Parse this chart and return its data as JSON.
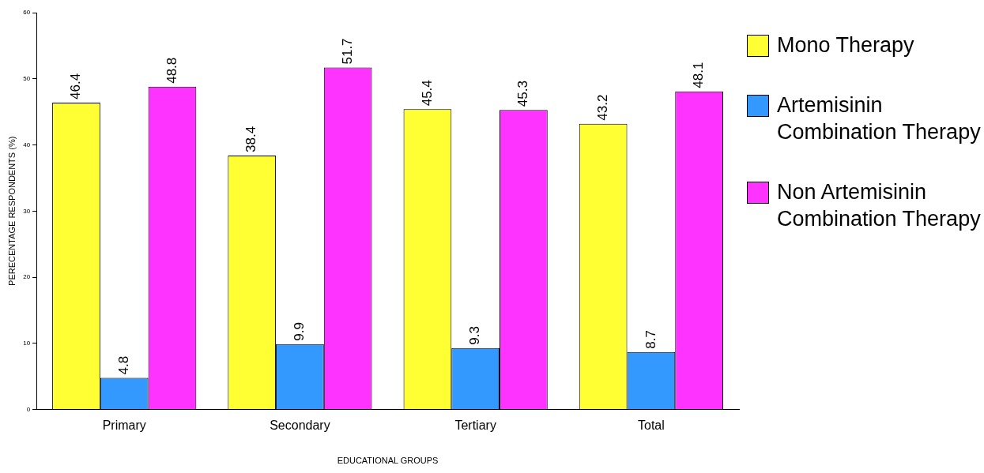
{
  "chart_data": {
    "type": "bar",
    "xlabel": "EDUCATIONAL GROUPS",
    "ylabel": "PERECENTAGE RESPONDENTS (%)",
    "categories": [
      "Primary",
      "Secondary",
      "Tertiary",
      "Total"
    ],
    "series": [
      {
        "name": "Mono Therapy",
        "color": "#ffff33",
        "values": [
          46.4,
          38.4,
          45.4,
          43.2
        ]
      },
      {
        "name": "Artemisinin Combination Therapy",
        "color": "#3399ff",
        "values": [
          4.8,
          9.9,
          9.3,
          8.7
        ]
      },
      {
        "name": "Non Artemisinin Combination Therapy",
        "color": "#ff33ff",
        "values": [
          48.8,
          51.7,
          45.3,
          48.1
        ]
      }
    ],
    "ylim": [
      0,
      60
    ],
    "yticks": [
      0,
      10,
      20,
      30,
      40,
      50,
      60
    ],
    "grid": false,
    "legend": "right",
    "data_labels": true
  }
}
